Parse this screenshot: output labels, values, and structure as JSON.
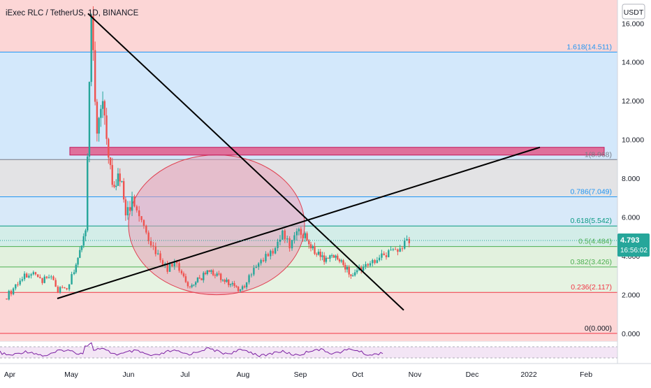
{
  "header": {
    "title": "iExec RLC / TetherUS, 1D, BINANCE",
    "currency": "USDT"
  },
  "price_badge": {
    "price": "4.793",
    "countdown": "16:56:02",
    "color": "#26a69a"
  },
  "chart_data": {
    "type": "candlestick",
    "symbol": "iExec RLC / TetherUS",
    "interval": "1D",
    "exchange": "BINANCE",
    "x_ticks": [
      "Apr",
      "May",
      "Jun",
      "Jul",
      "Aug",
      "Sep",
      "Oct",
      "Nov",
      "Dec",
      "2022",
      "Feb"
    ],
    "y_ticks": [
      "0.000",
      "2.000",
      "4.000",
      "6.000",
      "8.000",
      "10.000",
      "12.000",
      "14.000",
      "16.000"
    ],
    "ylim": [
      -0.4,
      17.2
    ],
    "last_price": 4.793,
    "fib_levels": [
      {
        "label": "0(0.000)",
        "value": 0.0,
        "line_color": "#f23645",
        "fill": "#fcd3d3",
        "text_color": "#131722"
      },
      {
        "label": "0.236(2.117)",
        "value": 2.117,
        "line_color": "#f23645",
        "fill": "#fcd3d3",
        "text_color": "#f23645"
      },
      {
        "label": "0.382(3.426)",
        "value": 3.426,
        "line_color": "#4caf50",
        "fill": "#e0f0dc",
        "text_color": "#4caf50"
      },
      {
        "label": "0.5(4.484)",
        "value": 4.484,
        "line_color": "#4caf50",
        "fill": "#e0f0dc",
        "text_color": "#4caf50"
      },
      {
        "label": "0.618(5.542)",
        "value": 5.542,
        "line_color": "#089981",
        "fill": "#d6eee9",
        "text_color": "#089981"
      },
      {
        "label": "0.786(7.049)",
        "value": 7.049,
        "line_color": "#2196f3",
        "fill": "#d8e9f9",
        "text_color": "#2196f3"
      },
      {
        "label": "1(8.968)",
        "value": 8.968,
        "line_color": "#787b86",
        "fill": "#e4e4e6",
        "text_color": "#787b86"
      },
      {
        "label": "1.618(14.511)",
        "value": 14.511,
        "line_color": "#2196f3",
        "fill": "#d2e7fb",
        "text_color": "#2196f3"
      }
    ],
    "fib_bands": [
      {
        "from": 14.511,
        "to": 17.2,
        "color": "#fcd6d6"
      },
      {
        "from": 8.968,
        "to": 14.511,
        "color": "#d3e8fb"
      },
      {
        "from": 7.049,
        "to": 8.968,
        "color": "#e3e3e5"
      },
      {
        "from": 5.542,
        "to": 7.049,
        "color": "#d8e9f9"
      },
      {
        "from": 4.484,
        "to": 5.542,
        "color": "#d3ede8"
      },
      {
        "from": 3.426,
        "to": 4.484,
        "color": "#e2f1de"
      },
      {
        "from": 2.117,
        "to": 3.426,
        "color": "#e6f3e2"
      },
      {
        "from": -0.4,
        "to": 2.117,
        "color": "#fcd6d6"
      }
    ],
    "price_series": [
      [
        "Apr",
        1.8
      ],
      [
        "Apr",
        2.3
      ],
      [
        "Apr",
        2.9
      ],
      [
        "Apr",
        3.2
      ],
      [
        "Apr",
        2.7
      ],
      [
        "Apr",
        3.0
      ],
      [
        "Apr",
        2.2
      ],
      [
        "Apr",
        2.4
      ],
      [
        "May",
        3.2
      ],
      [
        "May",
        4.2
      ],
      [
        "May",
        5.5
      ],
      [
        "May",
        16.5
      ],
      [
        "May",
        10.0
      ],
      [
        "May",
        12.2
      ],
      [
        "May",
        9.0
      ],
      [
        "May",
        7.5
      ],
      [
        "May",
        8.2
      ],
      [
        "May",
        6.2
      ],
      [
        "Jun",
        6.8
      ],
      [
        "Jun",
        5.8
      ],
      [
        "Jun",
        5.2
      ],
      [
        "Jun",
        4.5
      ],
      [
        "Jun",
        3.8
      ],
      [
        "Jun",
        3.3
      ],
      [
        "Jun",
        3.7
      ],
      [
        "Jun",
        3.1
      ],
      [
        "Jul",
        2.4
      ],
      [
        "Jul",
        2.8
      ],
      [
        "Jul",
        3.3
      ],
      [
        "Jul",
        3.0
      ],
      [
        "Jul",
        2.6
      ],
      [
        "Jul",
        2.3
      ],
      [
        "Aug",
        2.5
      ],
      [
        "Aug",
        3.5
      ],
      [
        "Aug",
        3.8
      ],
      [
        "Aug",
        4.0
      ],
      [
        "Aug",
        4.4
      ],
      [
        "Aug",
        5.3
      ],
      [
        "Aug",
        4.5
      ],
      [
        "Aug",
        5.5
      ],
      [
        "Sep",
        5.0
      ],
      [
        "Sep",
        4.2
      ],
      [
        "Sep",
        3.8
      ],
      [
        "Sep",
        4.0
      ],
      [
        "Sep",
        3.5
      ],
      [
        "Sep",
        3.0
      ],
      [
        "Oct",
        3.4
      ],
      [
        "Oct",
        3.8
      ],
      [
        "Oct",
        4.1
      ],
      [
        "Oct",
        4.4
      ],
      [
        "Oct",
        4.793
      ]
    ],
    "annotations": {
      "descending_line": {
        "from": [
          "May",
          16.5
        ],
        "to": [
          "Oct",
          1.2
        ],
        "color": "#000000"
      },
      "ascending_line": {
        "from": [
          "Apr",
          1.8
        ],
        "to": [
          "2022",
          9.6
        ],
        "color": "#000000"
      },
      "ellipse": {
        "center": [
          "Jul",
          5.6
        ],
        "color": "#e04050",
        "fill": "#e8a0b8"
      },
      "resistance_zone": {
        "from_price": 9.2,
        "to_price": 9.6,
        "color": "#c2185b"
      }
    },
    "indicator": {
      "type": "RSI",
      "color": "#7b1fa2",
      "band_fill": "#f3e5f5"
    },
    "grid": false,
    "legend": "top-left"
  }
}
